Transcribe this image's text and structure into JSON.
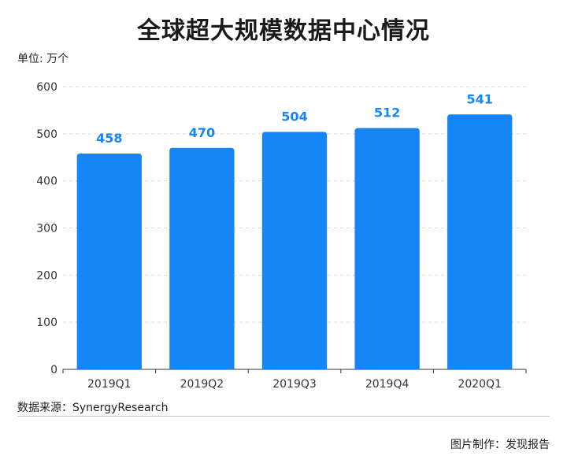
{
  "title": "全球超大规模数据中心情况",
  "unit_label": "单位: 万个",
  "source": "数据来源：SynergyResearch",
  "credit": "图片制作：发现报告",
  "colors": {
    "bar": "#1585f7",
    "value_label": "#1585f7",
    "grid": "#d6d6d6",
    "axis": "#333333",
    "tick": "#333333"
  },
  "chart_data": {
    "type": "bar",
    "title": "全球超大规模数据中心情况",
    "ylabel": "单位: 万个",
    "categories": [
      "2019Q1",
      "2019Q2",
      "2019Q3",
      "2019Q4",
      "2020Q1"
    ],
    "values": [
      458,
      470,
      504,
      512,
      541
    ],
    "yticks": [
      0,
      100,
      200,
      300,
      400,
      500,
      600
    ],
    "ylim": [
      0,
      600
    ],
    "grid": true,
    "grid_style": "dashed"
  }
}
